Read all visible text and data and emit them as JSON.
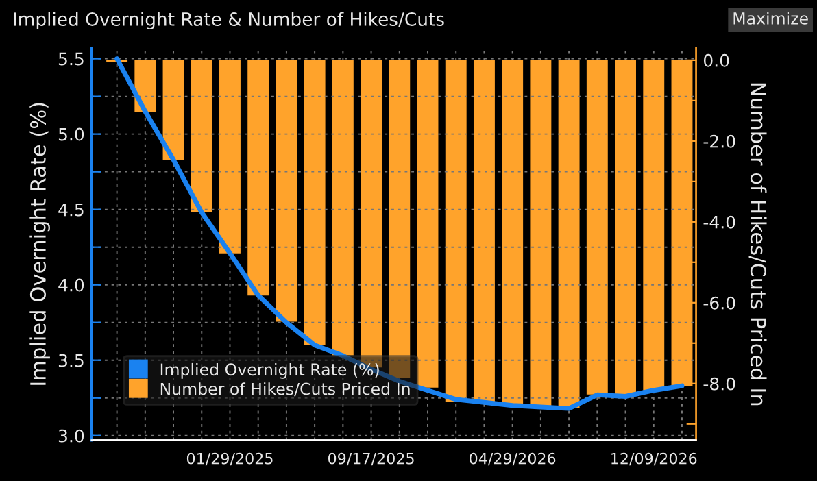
{
  "chart_data": {
    "type": "bar",
    "title": "Implied Overnight Rate & Number of Hikes/Cuts",
    "annotations": [
      "Maximize"
    ],
    "categories": [
      null,
      null,
      null,
      null,
      "01/29/2025",
      null,
      null,
      null,
      null,
      "09/17/2025",
      null,
      null,
      null,
      null,
      "04/29/2026",
      null,
      null,
      null,
      null,
      "12/09/2026",
      null
    ],
    "series": [
      {
        "name": "Implied Overnight Rate (%)",
        "type": "line",
        "axis": "y",
        "color": "#1a82f0",
        "values": [
          5.5,
          5.15,
          4.83,
          4.48,
          4.21,
          3.93,
          3.75,
          3.6,
          3.53,
          3.44,
          3.36,
          3.3,
          3.24,
          3.22,
          3.2,
          3.19,
          3.18,
          3.27,
          3.26,
          3.3,
          3.33
        ]
      },
      {
        "name": "Number of Hikes/Cuts Priced In",
        "axis": "y2",
        "color": "#ffa32b",
        "values": [
          -0.05,
          -1.28,
          -2.46,
          -3.76,
          -4.78,
          -5.82,
          -6.47,
          -7.04,
          -7.3,
          -7.6,
          -7.85,
          -8.1,
          -8.45,
          -8.5,
          -8.56,
          -8.56,
          -8.6,
          -8.27,
          -8.27,
          -8.17,
          -8.06
        ]
      }
    ],
    "ylabel": "Implied Overnight Rate (%)",
    "y2label": "Number of Hikes/Cuts Priced In",
    "ylim": [
      2.97,
      5.57
    ],
    "yticks": [
      {
        "value": 3.0,
        "label": "3.0"
      },
      {
        "value": 3.25,
        "label": null
      },
      3.5,
      {
        "value": 3.75,
        "label": null
      },
      {
        "value": 4.0,
        "label": "4.0"
      },
      {
        "value": 4.25,
        "label": null
      },
      4.5,
      {
        "value": 4.75,
        "label": null
      },
      {
        "value": 5.0,
        "label": "5.0"
      },
      {
        "value": 5.25,
        "label": null
      },
      5.5
    ],
    "y2lim": [
      -9.4,
      0.3
    ],
    "y2ticks": [
      {
        "value": -9.0,
        "label": null
      },
      {
        "value": -8.0,
        "label": "-8.0"
      },
      {
        "value": -7.0,
        "label": null
      },
      {
        "value": -6.0,
        "label": "-6.0"
      },
      {
        "value": -5.0,
        "label": null
      },
      {
        "value": -4.0,
        "label": "-4.0"
      },
      {
        "value": -3.0,
        "label": null
      },
      {
        "value": -2.0,
        "label": "-2.0"
      },
      {
        "value": -1.0,
        "label": null
      },
      {
        "value": 0.0,
        "label": "0.0"
      }
    ],
    "grid": true,
    "legend": "bottom left"
  }
}
